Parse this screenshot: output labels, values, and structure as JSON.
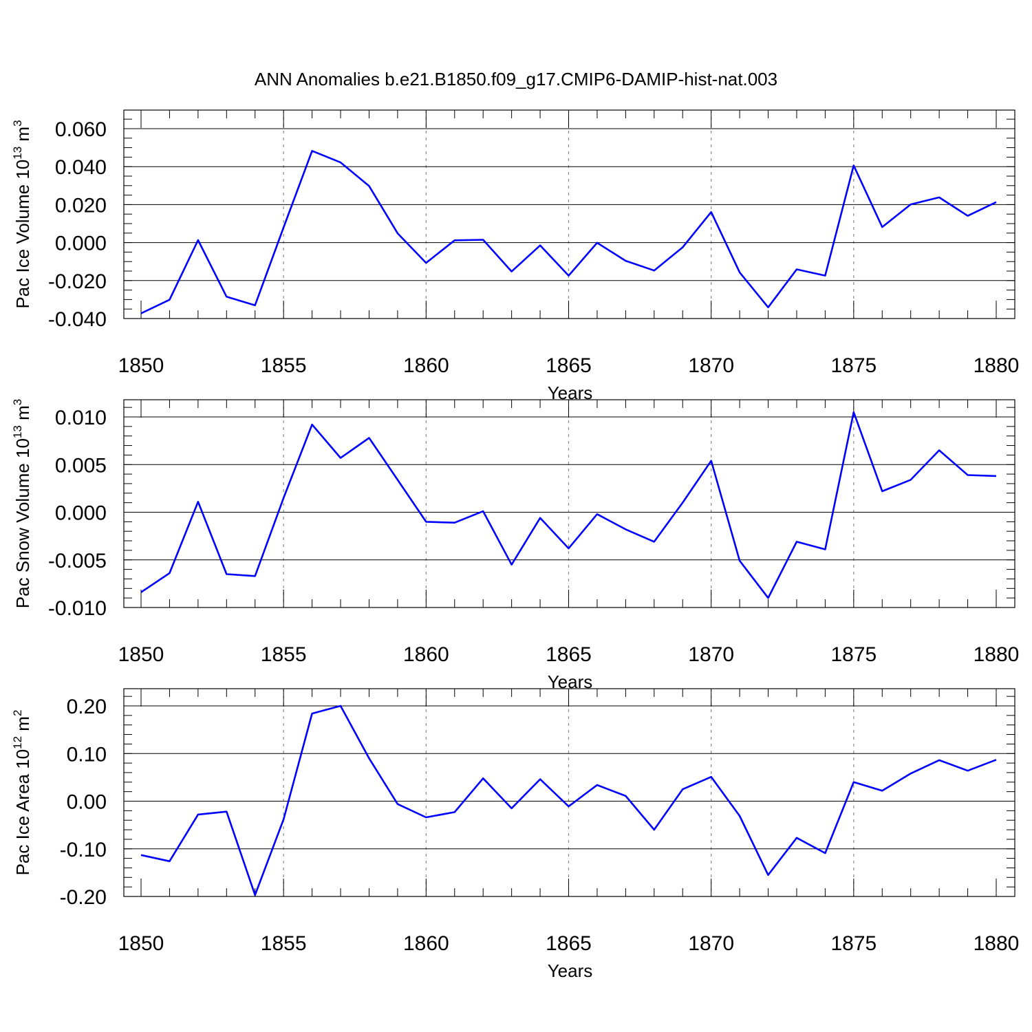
{
  "figure": {
    "title": "ANN Anomalies b.e21.B1850.f09_g17.CMIP6-DAMIP-hist-nat.003",
    "line_color": "#0000ff",
    "grid_color": "#888888"
  },
  "chart_data": [
    {
      "type": "line",
      "ylabel": "Pac Ice Volume 10",
      "ylabel_sup": "13",
      "ylabel_unit": " m",
      "ylabel_unit_sup": "3",
      "xlabel": "Years",
      "xlim": [
        1850,
        1880
      ],
      "ylim": [
        -0.04,
        0.069
      ],
      "yticks": [
        -0.04,
        -0.02,
        0.0,
        0.02,
        0.04,
        0.06
      ],
      "yticklabels": [
        "-0.040",
        "-0.020",
        "0.000",
        "0.020",
        "0.040",
        "0.060"
      ],
      "yminor_step": 0.005,
      "xticks": [
        1850,
        1855,
        1860,
        1865,
        1870,
        1875,
        1880
      ],
      "xticklabels": [
        "1850",
        "1855",
        "1860",
        "1865",
        "1870",
        "1875",
        "1880"
      ],
      "grid_x": [
        1855,
        1860,
        1865,
        1870,
        1875
      ],
      "x": [
        1850,
        1851,
        1852,
        1853,
        1854,
        1855,
        1856,
        1857,
        1858,
        1859,
        1860,
        1861,
        1862,
        1863,
        1864,
        1865,
        1866,
        1867,
        1868,
        1869,
        1870,
        1871,
        1872,
        1873,
        1874,
        1875,
        1876,
        1877,
        1878,
        1879,
        1880
      ],
      "series": [
        {
          "values": [
            -0.0373,
            -0.0301,
            0.0013,
            -0.0285,
            -0.033,
            0.008,
            0.0483,
            0.0422,
            0.0298,
            0.0049,
            -0.0107,
            0.0012,
            0.0015,
            -0.0152,
            -0.0015,
            -0.0174,
            -0.0001,
            -0.0096,
            -0.0147,
            -0.0025,
            0.0161,
            -0.0157,
            -0.0341,
            -0.0141,
            -0.0174,
            0.0406,
            0.0082,
            0.0201,
            0.0238,
            0.0141,
            0.0213
          ]
        }
      ]
    },
    {
      "type": "line",
      "ylabel": "Pac Snow Volume 10",
      "ylabel_sup": "13",
      "ylabel_unit": " m",
      "ylabel_unit_sup": "3",
      "xlabel": "Years",
      "xlim": [
        1850,
        1880
      ],
      "ylim": [
        -0.012,
        0.012
      ],
      "yticks": [
        -0.01,
        -0.005,
        0.0,
        0.005,
        0.01
      ],
      "yticklabels": [
        "-0.010",
        "-0.005",
        "0.000",
        "0.005",
        "0.010"
      ],
      "yminor_step": 0.001,
      "xticks": [
        1850,
        1855,
        1860,
        1865,
        1870,
        1875,
        1880
      ],
      "xticklabels": [
        "1850",
        "1855",
        "1860",
        "1865",
        "1870",
        "1875",
        "1880"
      ],
      "grid_x": [
        1855,
        1860,
        1865,
        1870,
        1875
      ],
      "x": [
        1850,
        1851,
        1852,
        1853,
        1854,
        1855,
        1856,
        1857,
        1858,
        1859,
        1860,
        1861,
        1862,
        1863,
        1864,
        1865,
        1866,
        1867,
        1868,
        1869,
        1870,
        1871,
        1872,
        1873,
        1874,
        1875,
        1876,
        1877,
        1878,
        1879,
        1880
      ],
      "series": [
        {
          "values": [
            -0.0084,
            -0.0064,
            0.0011,
            -0.0065,
            -0.0067,
            0.0015,
            0.0092,
            0.0057,
            0.0078,
            0.0034,
            -0.001,
            -0.0011,
            0.0001,
            -0.0055,
            -0.0006,
            -0.0038,
            -0.0002,
            -0.0018,
            -0.0031,
            0.001,
            0.0054,
            -0.0051,
            -0.009,
            -0.0031,
            -0.0039,
            0.0105,
            0.0022,
            0.0034,
            0.0065,
            0.0039,
            0.0038
          ]
        }
      ]
    },
    {
      "type": "line",
      "ylabel": "Pac Ice Area 10",
      "ylabel_sup": "12",
      "ylabel_unit": " m",
      "ylabel_unit_sup": "2",
      "xlabel": "Years",
      "xlim": [
        1850,
        1880
      ],
      "ylim": [
        -0.2,
        0.238
      ],
      "yticks": [
        -0.2,
        -0.1,
        0.0,
        0.1,
        0.2
      ],
      "yticklabels": [
        "-0.20",
        "-0.10",
        "0.00",
        "0.10",
        "0.20"
      ],
      "yminor_step": 0.02,
      "xticks": [
        1850,
        1855,
        1860,
        1865,
        1870,
        1875,
        1880
      ],
      "xticklabels": [
        "1850",
        "1855",
        "1860",
        "1865",
        "1870",
        "1875",
        "1880"
      ],
      "grid_x": [
        1855,
        1860,
        1865,
        1870,
        1875
      ],
      "x": [
        1850,
        1851,
        1852,
        1853,
        1854,
        1855,
        1856,
        1857,
        1858,
        1859,
        1860,
        1861,
        1862,
        1863,
        1864,
        1865,
        1866,
        1867,
        1868,
        1869,
        1870,
        1871,
        1872,
        1873,
        1874,
        1875,
        1876,
        1877,
        1878,
        1879,
        1880
      ],
      "series": [
        {
          "values": [
            -0.113,
            -0.126,
            -0.028,
            -0.022,
            -0.197,
            -0.038,
            0.184,
            0.2,
            0.09,
            -0.006,
            -0.034,
            -0.023,
            0.048,
            -0.015,
            0.046,
            -0.011,
            0.034,
            0.011,
            -0.06,
            0.025,
            0.051,
            -0.031,
            -0.155,
            -0.077,
            -0.109,
            0.04,
            0.022,
            0.058,
            0.086,
            0.064,
            0.087
          ]
        }
      ]
    }
  ]
}
